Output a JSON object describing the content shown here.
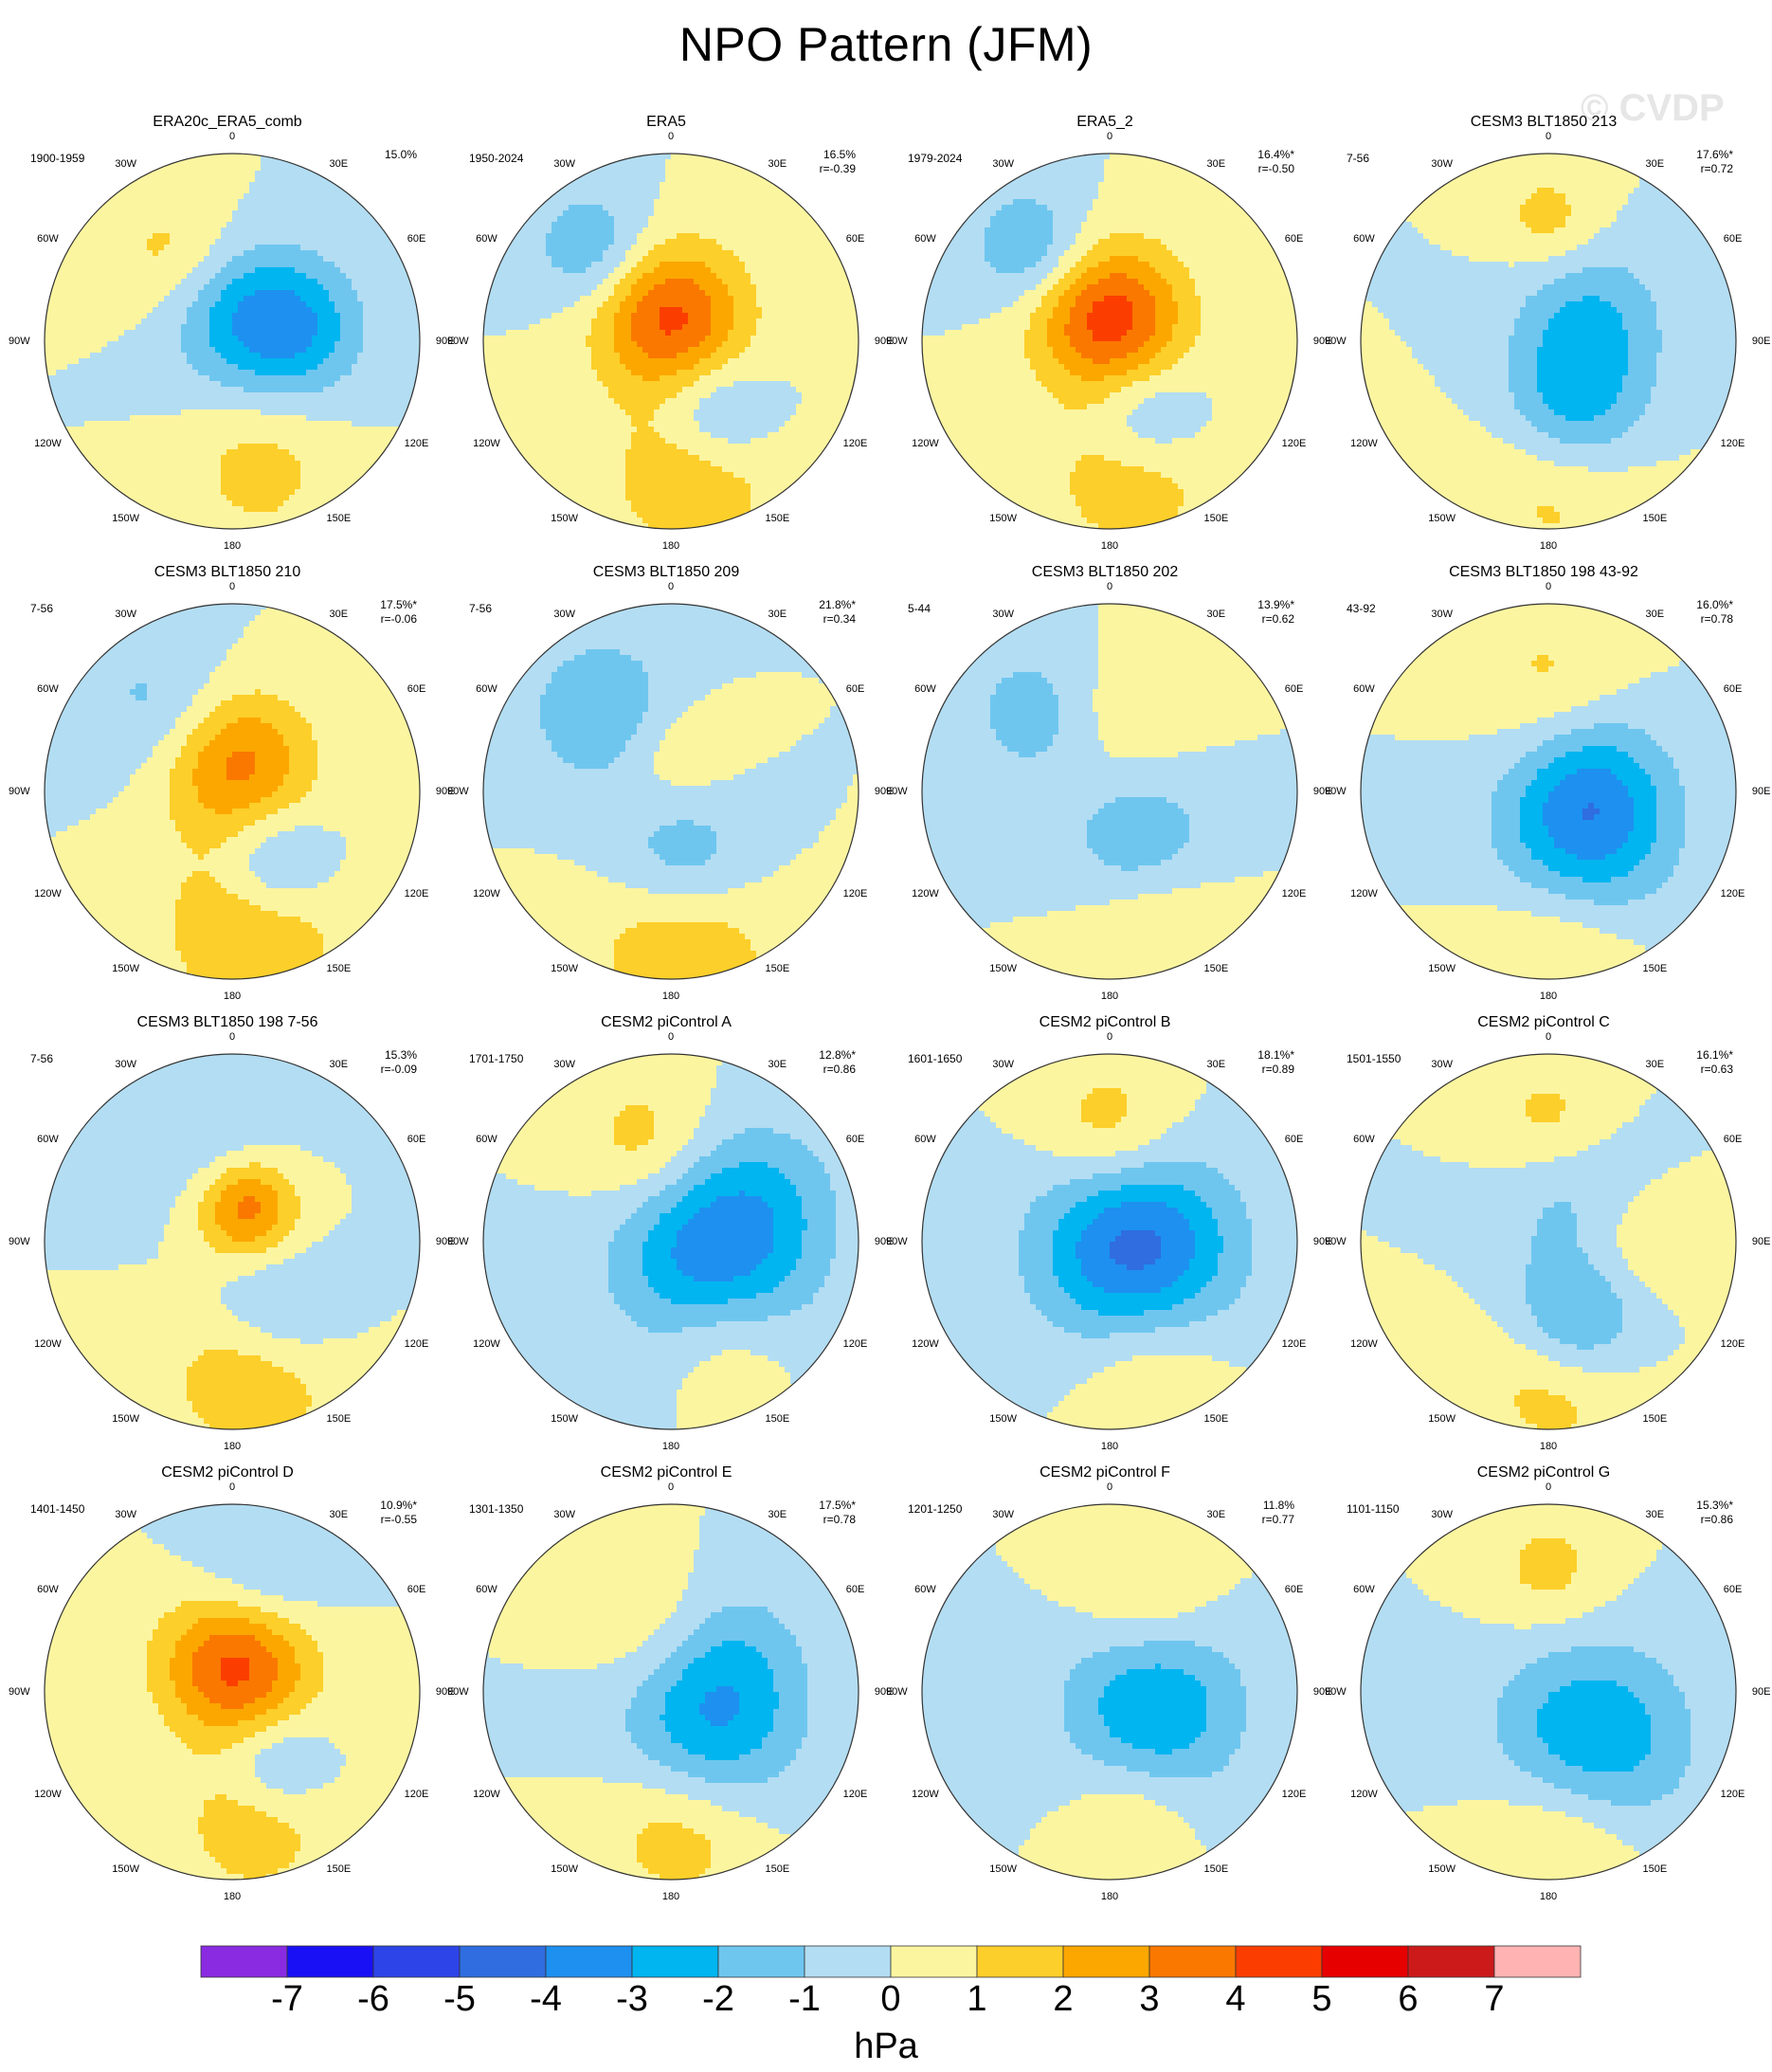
{
  "title": "NPO Pattern (JFM)",
  "watermark": "© CVDP",
  "longitude_labels": [
    "180",
    "150W",
    "150E",
    "120W",
    "120E",
    "90W",
    "90E",
    "60W",
    "60E",
    "30W",
    "30E",
    "0"
  ],
  "panels": [
    {
      "title": "ERA20c_ERA5_comb",
      "period": "1900-1959",
      "pct": "15.0%",
      "r": "",
      "blobs": [
        {
          "lon": 168,
          "c": 0.7,
          "s": 1.0,
          "v": 1.4
        },
        {
          "lon": 80,
          "c": 0.35,
          "s": 0.9,
          "v": -2.6
        },
        {
          "lon": 5,
          "c": 0.15,
          "s": 1.0,
          "v": -2.3
        },
        {
          "lon": -35,
          "c": 0.55,
          "s": 0.9,
          "v": 1.5
        }
      ]
    },
    {
      "title": "ERA5",
      "period": "1950-2024",
      "pct": "16.5%",
      "r": "r=-0.39",
      "blobs": [
        {
          "lon": 170,
          "c": 0.7,
          "s": 1.1,
          "v": 2.2
        },
        {
          "lon": 150,
          "c": 0.45,
          "s": 0.8,
          "v": -2.3
        },
        {
          "lon": 0,
          "c": 0.12,
          "s": 1.0,
          "v": 4.3
        },
        {
          "lon": -40,
          "c": 0.65,
          "s": 0.8,
          "v": -2.0
        }
      ]
    },
    {
      "title": "ERA5_2",
      "period": "1979-2024",
      "pct": "16.4%*",
      "r": "r=-0.50",
      "blobs": [
        {
          "lon": 170,
          "c": 0.7,
          "s": 1.1,
          "v": 2.0
        },
        {
          "lon": 155,
          "c": 0.45,
          "s": 0.8,
          "v": -2.2
        },
        {
          "lon": 0,
          "c": 0.12,
          "s": 1.0,
          "v": 4.6
        },
        {
          "lon": -40,
          "c": 0.65,
          "s": 0.8,
          "v": -2.1
        }
      ]
    },
    {
      "title": "CESM3 BLT1850 213",
      "period": "7-56",
      "pct": "17.6%*",
      "r": "r=0.72",
      "blobs": [
        {
          "lon": 175,
          "c": 0.7,
          "s": 1.2,
          "v": 1.8
        },
        {
          "lon": 160,
          "c": 0.4,
          "s": 1.0,
          "v": -3.0
        },
        {
          "lon": 60,
          "c": 0.25,
          "s": 1.0,
          "v": -2.0
        },
        {
          "lon": 0,
          "c": 0.65,
          "s": 0.7,
          "v": 1.5
        }
      ]
    },
    {
      "title": "CESM3 BLT1850 210",
      "period": "7-56",
      "pct": "17.5%*",
      "r": "r=-0.06",
      "blobs": [
        {
          "lon": 170,
          "c": 0.7,
          "s": 1.2,
          "v": 2.4
        },
        {
          "lon": 150,
          "c": 0.45,
          "s": 0.8,
          "v": -2.5
        },
        {
          "lon": 10,
          "c": 0.15,
          "s": 1.0,
          "v": 3.4
        },
        {
          "lon": -40,
          "c": 0.6,
          "s": 1.0,
          "v": -1.4
        }
      ]
    },
    {
      "title": "CESM3 BLT1850 209",
      "period": "7-56",
      "pct": "21.8%*",
      "r": "r=0.34",
      "blobs": [
        {
          "lon": 175,
          "c": 0.75,
          "s": 1.2,
          "v": 2.5
        },
        {
          "lon": 170,
          "c": 0.4,
          "s": 1.0,
          "v": -2.5
        },
        {
          "lon": -40,
          "c": 0.55,
          "s": 1.0,
          "v": -2.1
        },
        {
          "lon": 0,
          "c": 0.2,
          "s": 0.8,
          "v": 1.2
        }
      ]
    },
    {
      "title": "CESM3 BLT1850 202",
      "period": "5-44",
      "pct": "13.9%*",
      "r": "r=0.62",
      "blobs": [
        {
          "lon": 160,
          "c": 0.7,
          "s": 1.0,
          "v": 1.6
        },
        {
          "lon": 150,
          "c": 0.35,
          "s": 1.0,
          "v": -2.2
        },
        {
          "lon": -40,
          "c": 0.55,
          "s": 1.0,
          "v": -1.8
        },
        {
          "lon": 0,
          "c": 0.4,
          "s": 1.0,
          "v": 1.2
        }
      ]
    },
    {
      "title": "CESM3 BLT1850 198 43-92",
      "period": "43-92",
      "pct": "16.0%*",
      "r": "r=0.78",
      "blobs": [
        {
          "lon": 175,
          "c": 0.75,
          "s": 1.1,
          "v": 1.6
        },
        {
          "lon": 150,
          "c": 0.35,
          "s": 1.2,
          "v": -3.0
        },
        {
          "lon": 80,
          "c": 0.25,
          "s": 1.0,
          "v": -2.0
        },
        {
          "lon": 0,
          "c": 0.6,
          "s": 1.0,
          "v": 1.2
        }
      ]
    },
    {
      "title": "CESM3 BLT1850 198 7-56",
      "period": "7-56",
      "pct": "15.3%",
      "r": "r=-0.09",
      "blobs": [
        {
          "lon": 170,
          "c": 0.7,
          "s": 1.1,
          "v": 2.3
        },
        {
          "lon": 150,
          "c": 0.45,
          "s": 0.9,
          "v": -2.0
        },
        {
          "lon": 20,
          "c": 0.2,
          "s": 0.7,
          "v": 4.0
        },
        {
          "lon": -10,
          "c": 0.45,
          "s": 1.0,
          "v": -1.3
        }
      ]
    },
    {
      "title": "CESM2 piControl A",
      "period": "1701-1750",
      "pct": "12.8%*",
      "r": "r=0.86",
      "blobs": [
        {
          "lon": 150,
          "c": 0.6,
          "s": 0.9,
          "v": 1.5
        },
        {
          "lon": 110,
          "c": 0.25,
          "s": 1.3,
          "v": -3.8
        },
        {
          "lon": -15,
          "c": 0.55,
          "s": 0.9,
          "v": 1.6
        },
        {
          "lon": 60,
          "c": 0.6,
          "s": 1.0,
          "v": -1.0
        }
      ]
    },
    {
      "title": "CESM2 piControl B",
      "period": "1601-1650",
      "pct": "18.1%*",
      "r": "r=0.89",
      "blobs": [
        {
          "lon": 160,
          "c": 0.65,
          "s": 1.0,
          "v": 1.4
        },
        {
          "lon": 110,
          "c": 0.15,
          "s": 1.3,
          "v": -4.5
        },
        {
          "lon": 0,
          "c": 0.6,
          "s": 0.9,
          "v": 1.8
        }
      ]
    },
    {
      "title": "CESM2 piControl C",
      "period": "1501-1550",
      "pct": "16.1%*",
      "r": "r=0.63",
      "blobs": [
        {
          "lon": 175,
          "c": 0.7,
          "s": 1.1,
          "v": 2.0
        },
        {
          "lon": 160,
          "c": 0.45,
          "s": 0.9,
          "v": -3.2
        },
        {
          "lon": 90,
          "c": 0.4,
          "s": 0.9,
          "v": 1.4
        },
        {
          "lon": 40,
          "c": 0.25,
          "s": 1.0,
          "v": -1.6
        },
        {
          "lon": 0,
          "c": 0.65,
          "s": 0.8,
          "v": 1.4
        }
      ]
    },
    {
      "title": "CESM2 piControl D",
      "period": "1401-1450",
      "pct": "10.9%*",
      "r": "r=-0.55",
      "blobs": [
        {
          "lon": 170,
          "c": 0.7,
          "s": 1.0,
          "v": 1.8
        },
        {
          "lon": 150,
          "c": 0.45,
          "s": 0.7,
          "v": -2.0
        },
        {
          "lon": 10,
          "c": 0.15,
          "s": 1.0,
          "v": 4.5
        },
        {
          "lon": 15,
          "c": 0.6,
          "s": 0.9,
          "v": -1.6
        }
      ]
    },
    {
      "title": "CESM2 piControl E",
      "period": "1301-1350",
      "pct": "17.5%*",
      "r": "r=0.78",
      "blobs": [
        {
          "lon": 175,
          "c": 0.7,
          "s": 1.1,
          "v": 2.0
        },
        {
          "lon": 140,
          "c": 0.3,
          "s": 1.2,
          "v": -3.0
        },
        {
          "lon": 60,
          "c": 0.4,
          "s": 1.0,
          "v": -1.3
        },
        {
          "lon": -20,
          "c": 0.4,
          "s": 0.9,
          "v": 1.0
        }
      ]
    },
    {
      "title": "CESM2 piControl F",
      "period": "1201-1250",
      "pct": "11.8%",
      "r": "r=0.77",
      "blobs": [
        {
          "lon": 170,
          "c": 0.65,
          "s": 0.8,
          "v": 1.2
        },
        {
          "lon": 110,
          "c": 0.25,
          "s": 1.2,
          "v": -3.0
        },
        {
          "lon": 20,
          "c": 0.55,
          "s": 0.9,
          "v": 1.3
        }
      ]
    },
    {
      "title": "CESM2 piControl G",
      "period": "1101-1150",
      "pct": "15.3%*",
      "r": "r=0.86",
      "blobs": [
        {
          "lon": 175,
          "c": 0.75,
          "s": 1.1,
          "v": 1.8
        },
        {
          "lon": 140,
          "c": 0.35,
          "s": 1.3,
          "v": -3.2
        },
        {
          "lon": 0,
          "c": 0.65,
          "s": 0.8,
          "v": 1.4
        }
      ]
    }
  ],
  "colorbar": {
    "units": "hPa",
    "labels": [
      "-7",
      "-6",
      "-5",
      "-4",
      "-3",
      "-2",
      "-1",
      "0",
      "1",
      "2",
      "3",
      "4",
      "5",
      "6",
      "7"
    ],
    "colors": [
      "#8a2be2",
      "#1a10f5",
      "#2d44e8",
      "#2f6de0",
      "#1e90f0",
      "#00b5f0",
      "#6ec6ef",
      "#b3ddf2",
      "#fcf5a0",
      "#fdcf2a",
      "#fca700",
      "#fa7800",
      "#fb3e00",
      "#e70000",
      "#cc1a1a",
      "#ffb3b3"
    ]
  }
}
